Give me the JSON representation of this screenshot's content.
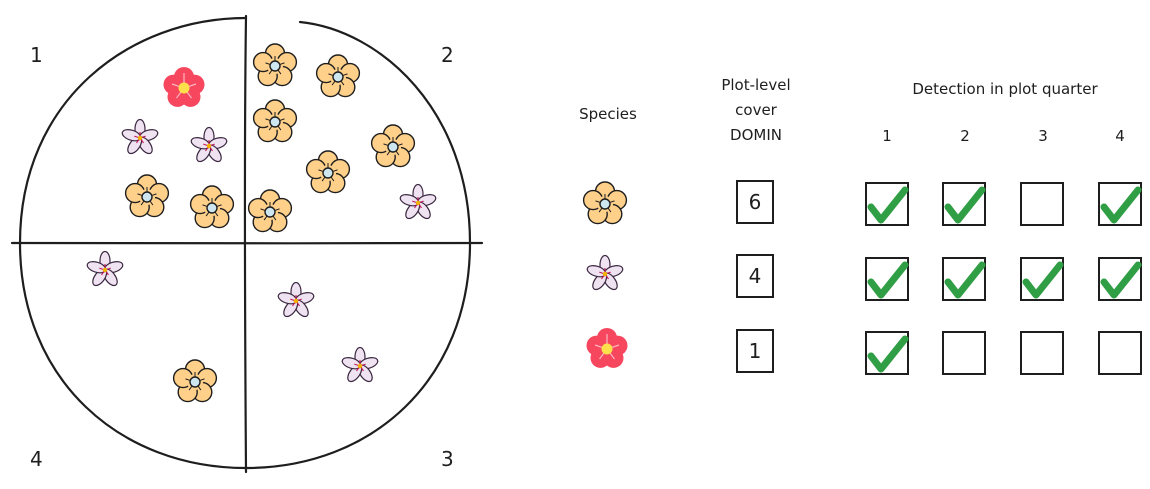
{
  "quarter_labels": [
    "1",
    "2",
    "3",
    "4"
  ],
  "header": {
    "species": "Species",
    "cover_line1": "Plot-level",
    "cover_line2": "cover",
    "cover_line3": "DOMIN",
    "detection": "Detection in plot quarter",
    "quarters": [
      "1",
      "2",
      "3",
      "4"
    ]
  },
  "rows": [
    {
      "species_icon": "yellow-flower-icon",
      "domin": "6",
      "detections": [
        true,
        true,
        false,
        true
      ]
    },
    {
      "species_icon": "purple-flower-icon",
      "domin": "4",
      "detections": [
        true,
        true,
        true,
        true
      ]
    },
    {
      "species_icon": "red-flower-icon",
      "domin": "1",
      "detections": [
        true,
        false,
        false,
        false
      ]
    }
  ],
  "colors": {
    "yellow_petal": "#ffd08a",
    "purple_petal": "#efe3f1",
    "red_petal": "#f6475e",
    "check": "#2f9e44"
  }
}
